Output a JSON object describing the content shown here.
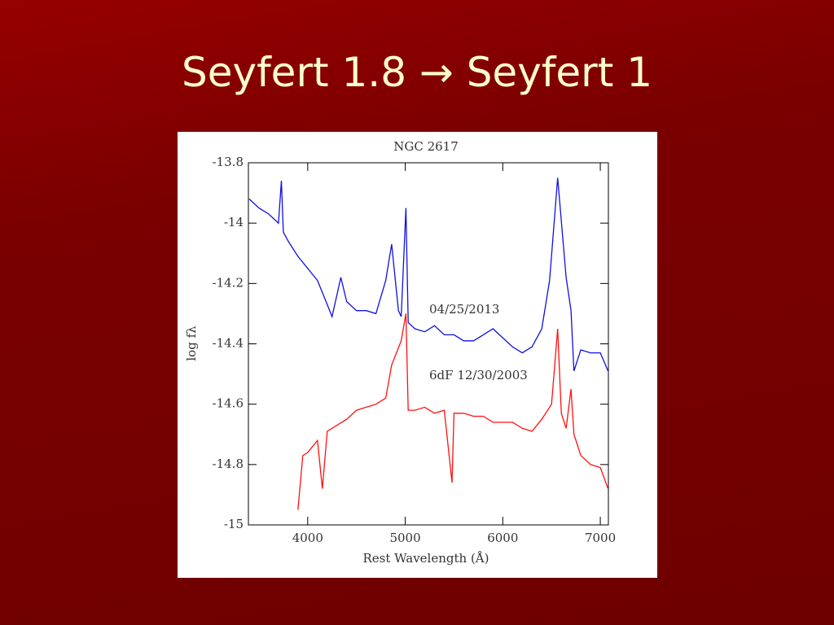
{
  "slide_title": "Seyfert 1.8 → Seyfert 1",
  "chart_data": {
    "type": "line",
    "title": "NGC 2617",
    "x_label": "Rest Wavelength (Å)",
    "y_label": "log fλ",
    "xlim": [
      3392,
      7083
    ],
    "ylim": [
      -15,
      -13.8
    ],
    "xticks": [
      4000,
      5000,
      6000,
      7000
    ],
    "yticks": [
      -15,
      -14.8,
      -14.6,
      -14.4,
      -14.2,
      -14,
      -13.8
    ],
    "series": [
      {
        "name": "04/25/2013",
        "color": "#1010e0",
        "x": [
          3400,
          3500,
          3600,
          3700,
          3730,
          3750,
          3800,
          3900,
          4000,
          4100,
          4200,
          4250,
          4340,
          4400,
          4500,
          4600,
          4700,
          4800,
          4861,
          4930,
          4959,
          5007,
          5030,
          5100,
          5200,
          5300,
          5400,
          5500,
          5600,
          5700,
          5800,
          5900,
          6000,
          6100,
          6200,
          6300,
          6400,
          6480,
          6563,
          6650,
          6700,
          6730,
          6800,
          6900,
          7000,
          7080
        ],
        "values": [
          -13.92,
          -13.95,
          -13.97,
          -14.0,
          -13.86,
          -14.03,
          -14.06,
          -14.11,
          -14.15,
          -14.19,
          -14.27,
          -14.31,
          -14.18,
          -14.26,
          -14.29,
          -14.29,
          -14.3,
          -14.19,
          -14.07,
          -14.29,
          -14.31,
          -13.95,
          -14.33,
          -14.35,
          -14.36,
          -14.34,
          -14.37,
          -14.37,
          -14.39,
          -14.39,
          -14.37,
          -14.35,
          -14.38,
          -14.41,
          -14.43,
          -14.41,
          -14.35,
          -14.19,
          -13.85,
          -14.18,
          -14.29,
          -14.49,
          -14.42,
          -14.43,
          -14.43,
          -14.49
        ]
      },
      {
        "name": "6dF 12/30/2003",
        "color": "#ff1010",
        "x": [
          3900,
          3950,
          4000,
          4100,
          4150,
          4200,
          4300,
          4400,
          4500,
          4600,
          4700,
          4800,
          4861,
          4959,
          5007,
          5030,
          5100,
          5200,
          5300,
          5400,
          5480,
          5500,
          5600,
          5700,
          5800,
          5900,
          6000,
          6100,
          6200,
          6300,
          6400,
          6500,
          6563,
          6600,
          6650,
          6700,
          6730,
          6800,
          6900,
          7000,
          7080
        ],
        "values": [
          -14.95,
          -14.77,
          -14.76,
          -14.72,
          -14.88,
          -14.69,
          -14.67,
          -14.65,
          -14.62,
          -14.61,
          -14.6,
          -14.58,
          -14.47,
          -14.39,
          -14.3,
          -14.62,
          -14.62,
          -14.61,
          -14.63,
          -14.62,
          -14.86,
          -14.63,
          -14.63,
          -14.64,
          -14.64,
          -14.66,
          -14.66,
          -14.66,
          -14.68,
          -14.69,
          -14.65,
          -14.6,
          -14.35,
          -14.63,
          -14.68,
          -14.55,
          -14.7,
          -14.77,
          -14.8,
          -14.81,
          -14.88
        ]
      }
    ]
  }
}
